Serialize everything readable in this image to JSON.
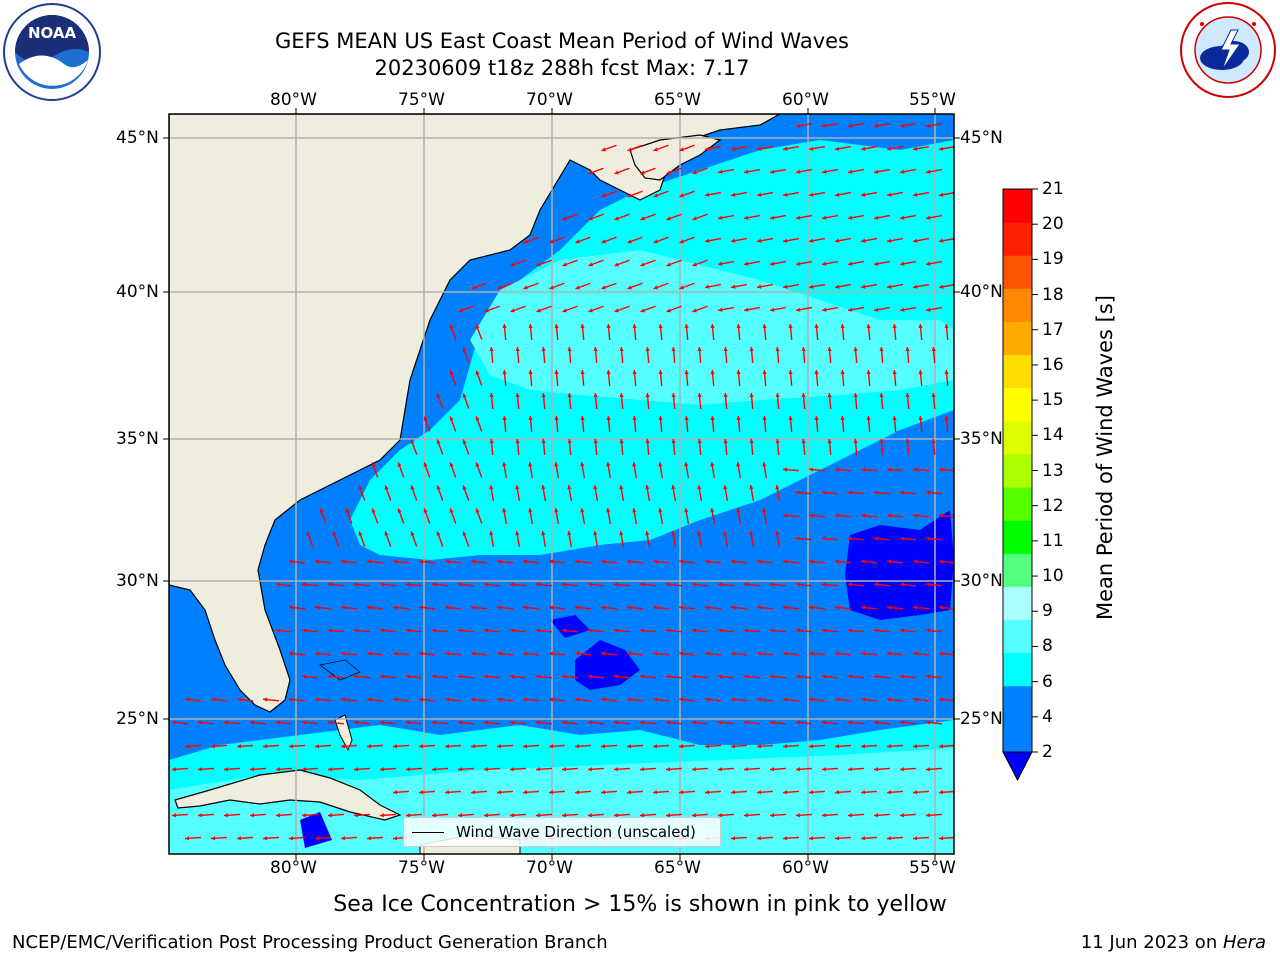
{
  "header": {
    "title_line1": "GEFS MEAN US East Coast Mean Period of Wind Waves",
    "title_line2": "20230609 t18z 288h fcst   Max: 7.17"
  },
  "logos": {
    "left": {
      "name": "noaa-logo",
      "text": "NOAA"
    },
    "right": {
      "name": "national-weather-service-logo",
      "text": "NATIONAL WEATHER SERVICE"
    }
  },
  "map": {
    "lon_ticks": [
      "80°W",
      "75°W",
      "70°W",
      "65°W",
      "60°W",
      "55°W"
    ],
    "lat_ticks": [
      "45°N",
      "40°N",
      "35°N",
      "30°N",
      "25°N"
    ],
    "legend_label": "Wind Wave Direction (unscaled)",
    "arrow_color": "#ff0000",
    "land_color": "#efedde",
    "coastline_color": "#000000"
  },
  "colorbar": {
    "label": "Mean Period of Wind Waves [s]",
    "ticks": [
      "21",
      "20",
      "19",
      "18",
      "17",
      "16",
      "15",
      "14",
      "13",
      "12",
      "11",
      "10",
      "9",
      "8",
      "6",
      "4",
      "2"
    ],
    "colors": [
      "#0000ff",
      "#0080ff",
      "#00ffff",
      "#55ffff",
      "#aaffff",
      "#55ff80",
      "#00ff00",
      "#55ff00",
      "#aaff00",
      "#ddff00",
      "#ffff00",
      "#ffdd00",
      "#ffaa00",
      "#ff8800",
      "#ff5500",
      "#ff2200",
      "#ff0000"
    ]
  },
  "caption": "Sea Ice Concentration > 15% is shown in pink to yellow",
  "footer": {
    "left": "NCEP/EMC/Verification Post Processing Product Generation Branch",
    "right_date": "11 Jun 2023 on ",
    "right_host": "Hera"
  }
}
